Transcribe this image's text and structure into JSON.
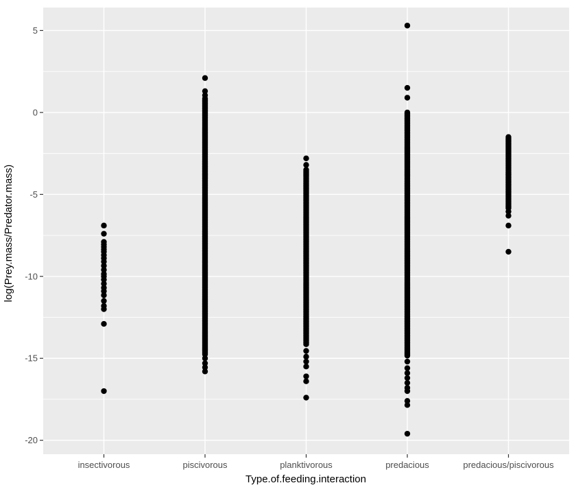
{
  "figure": {
    "background": "#FFFFFF",
    "panel_background": "#EBEBEB",
    "grid_color": "#FFFFFF",
    "point_color": "#000000",
    "tick_color": "#333333",
    "tick_label_color": "#4D4D4D",
    "axis_title_color": "#000000"
  },
  "chart_data": {
    "type": "scatter",
    "subtype": "strip-plot",
    "title": "",
    "xlabel": "Type.of.feeding.interaction",
    "ylabel": "log(Prey.mass/Predator.mass)",
    "categories": [
      "insectivorous",
      "piscivorous",
      "planktivorous",
      "predacious",
      "predacious/piscivorous"
    ],
    "ylim": [
      -20.85,
      6.4
    ],
    "yticks_major": [
      5,
      0,
      -5,
      -10,
      -15,
      -20
    ],
    "yticks_minor": [
      2.5,
      -2.5,
      -7.5,
      -12.5,
      -17.5
    ],
    "grid": true,
    "legend": "none",
    "series": [
      {
        "name": "insectivorous",
        "points": [
          -6.9,
          -7.4,
          -7.9,
          -8.05,
          -8.2,
          -8.35,
          -8.5,
          -8.7,
          -8.9,
          -9.1,
          -9.35,
          -9.6,
          -9.85,
          -10.0,
          -10.2,
          -10.45,
          -10.7,
          -10.9,
          -11.15,
          -11.5,
          -11.8,
          -12.0,
          -12.9,
          -17.0
        ],
        "dense_ranges": []
      },
      {
        "name": "piscivorous",
        "points": [
          2.1,
          1.3,
          1.05,
          -15.0,
          -15.3,
          -15.55,
          -15.8
        ],
        "dense_ranges": [
          {
            "from": 0.85,
            "to": -14.8,
            "step": 0.07
          }
        ]
      },
      {
        "name": "planktivorous",
        "points": [
          -2.8,
          -3.2,
          -14.55,
          -14.9,
          -15.2,
          -15.5,
          -16.1,
          -16.4,
          -17.4
        ],
        "dense_ranges": [
          {
            "from": -3.5,
            "to": -14.2,
            "step": 0.07
          }
        ]
      },
      {
        "name": "predacious",
        "points": [
          5.3,
          1.5,
          0.9,
          -15.2,
          -15.6,
          -15.9,
          -16.2,
          -16.5,
          -16.8,
          -17.0,
          -17.6,
          -17.85,
          -19.6
        ],
        "dense_ranges": [
          {
            "from": 0.0,
            "to": -14.9,
            "step": 0.07
          }
        ]
      },
      {
        "name": "predacious/piscivorous",
        "points": [
          -6.05,
          -6.3,
          -6.9,
          -8.5
        ],
        "dense_ranges": [
          {
            "from": -1.5,
            "to": -5.85,
            "step": 0.07
          }
        ]
      }
    ]
  }
}
